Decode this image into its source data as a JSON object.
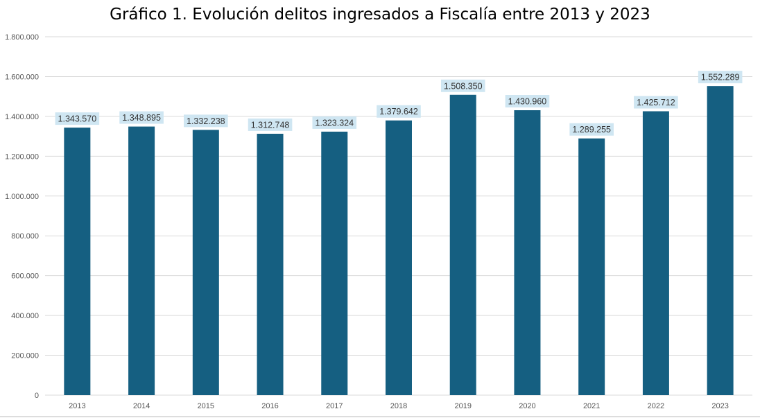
{
  "chart_data": {
    "type": "bar",
    "title": "Gráfico 1. Evolución delitos ingresados a Fiscalía entre 2013 y 2023",
    "xlabel": "",
    "ylabel": "",
    "categories": [
      "2013",
      "2014",
      "2015",
      "2016",
      "2017",
      "2018",
      "2019",
      "2020",
      "2021",
      "2022",
      "2023"
    ],
    "values": [
      1343570,
      1348895,
      1332238,
      1312748,
      1323324,
      1379642,
      1508350,
      1430960,
      1289255,
      1425712,
      1552289
    ],
    "value_labels": [
      "1.343.570",
      "1.348.895",
      "1.332.238",
      "1.312.748",
      "1.323.324",
      "1.379.642",
      "1.508.350",
      "1.430.960",
      "1.289.255",
      "1.425.712",
      "1.552.289"
    ],
    "yticks": [
      0,
      200000,
      400000,
      600000,
      800000,
      1000000,
      1200000,
      1400000,
      1600000,
      1800000
    ],
    "ytick_labels": [
      "0",
      "200.000",
      "400.000",
      "600.000",
      "800.000",
      "1.000.000",
      "1.200.000",
      "1.400.000",
      "1.600.000",
      "1.800.000"
    ],
    "ylim": [
      0,
      1800000
    ],
    "grid": true,
    "legend": "none",
    "colors": {
      "bar": "#155f81",
      "label_background": "#cfe6f2",
      "gridline": "#dadada"
    }
  }
}
